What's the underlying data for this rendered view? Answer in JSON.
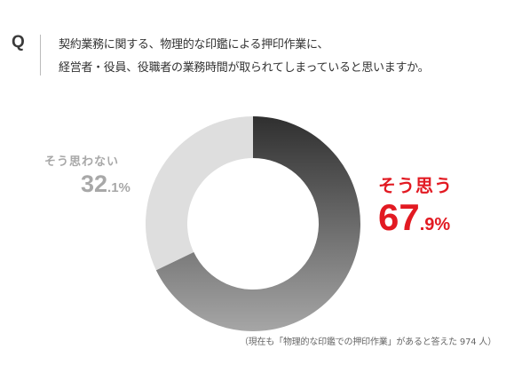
{
  "question": {
    "mark": "Q",
    "lines": [
      "契約業務に関する、物理的な印鑑による押印作業に、",
      "経営者・役員、役職者の業務時間が取られてしまっていると思いますか。"
    ]
  },
  "chart_data": {
    "type": "pie",
    "donut": true,
    "categories": [
      "そう思う",
      "そう思わない"
    ],
    "values": [
      67.9,
      32.1
    ],
    "unit": "%",
    "colors": {
      "yes_gradient": [
        "#2f2f2f",
        "#a6a6a6"
      ],
      "no_fill": "#dedede",
      "yes_label": "#e21a22",
      "no_label": "#a8a8a8"
    },
    "labels": {
      "yes": {
        "text": "そう思う",
        "integer": "67",
        "decimal": ".9%"
      },
      "no": {
        "text": "そう思わない",
        "integer": "32",
        "decimal": ".1%"
      }
    }
  },
  "footnote": "（現在も「物理的な印鑑での押印作業」があると答えた 974 人）"
}
